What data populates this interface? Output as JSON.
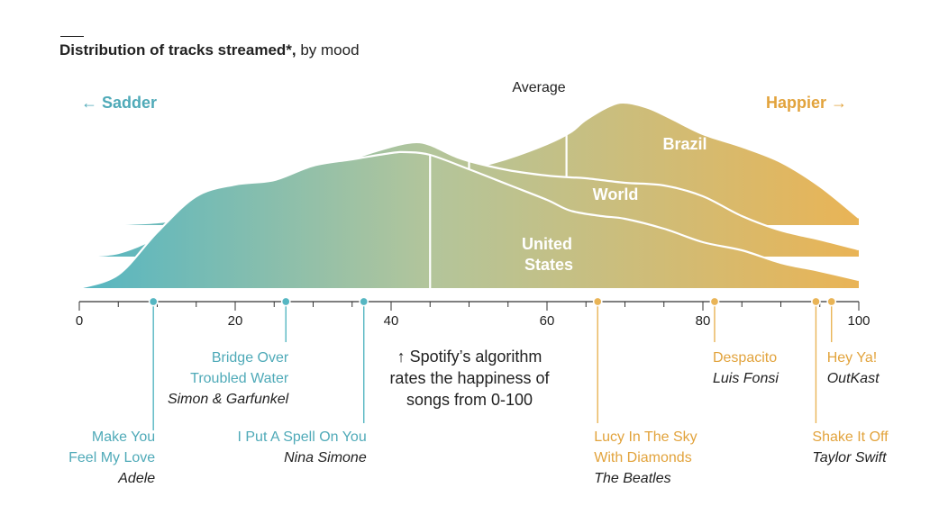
{
  "subtitle": {
    "bold": "Distribution of tracks streamed*,",
    "rest": " by mood"
  },
  "labels": {
    "sadder": "← Sadder",
    "happier": "Happier →",
    "average": "Average",
    "note": [
      "↑ Spotify’s algorithm",
      "rates the happiness of",
      "songs from 0-100"
    ]
  },
  "colors": {
    "sad": "#55B6C2",
    "mid": "#B3C59B",
    "happy": "#E9B456",
    "teal_text": "#4FAAB8",
    "orange_text": "#E2A33C"
  },
  "chart_data": {
    "type": "area",
    "x_axis": {
      "range": [
        0,
        100
      ],
      "ticks": [
        0,
        20,
        40,
        60,
        80,
        100
      ]
    },
    "series": [
      {
        "name": "Brazil",
        "average": 62.5,
        "x": [
          2,
          10,
          16,
          20,
          25,
          30,
          35,
          40,
          43,
          45,
          48,
          50,
          55,
          60,
          63,
          65,
          68,
          70,
          73,
          76,
          80,
          85,
          90,
          95,
          100
        ],
        "density": [
          0,
          3,
          10,
          14,
          18,
          25,
          37,
          55,
          62,
          61,
          58,
          62,
          74,
          90,
          103,
          117,
          132,
          136,
          130,
          118,
          101,
          87,
          70,
          43,
          8
        ]
      },
      {
        "name": "World",
        "average": 50,
        "x": [
          0,
          5,
          10,
          15,
          20,
          25,
          30,
          35,
          40,
          43,
          45,
          48,
          50,
          55,
          60,
          63,
          65,
          70,
          75,
          80,
          85,
          90,
          95,
          100
        ],
        "density": [
          0,
          4,
          21,
          43,
          62,
          73,
          86,
          108,
          122,
          127,
          124,
          112,
          106,
          96,
          90,
          88,
          87,
          82,
          79,
          67,
          45,
          29,
          19,
          8
        ]
      },
      {
        "name": "United States",
        "average": 45,
        "x": [
          0,
          5,
          10,
          15,
          20,
          25,
          30,
          35,
          40,
          42,
          45,
          50,
          55,
          60,
          63,
          67,
          70,
          75,
          80,
          85,
          90,
          95,
          100
        ],
        "density": [
          0,
          15,
          62,
          102,
          115,
          120,
          136,
          143,
          150,
          151,
          148,
          132,
          115,
          98,
          86,
          80,
          77,
          66,
          51,
          42,
          28,
          19,
          9
        ]
      }
    ],
    "songs": [
      {
        "title": [
          "Make You",
          "Feel My Love"
        ],
        "artist": "Adele",
        "score": 9.5
      },
      {
        "title": [
          "Bridge Over",
          "Troubled Water"
        ],
        "artist": "Simon & Garfunkel",
        "score": 26.5
      },
      {
        "title": [
          "I Put A Spell On You"
        ],
        "artist": "Nina Simone",
        "score": 36.5
      },
      {
        "title": [
          "Lucy In The Sky",
          "With Diamonds"
        ],
        "artist": "The Beatles",
        "score": 66.5
      },
      {
        "title": [
          "Despacito"
        ],
        "artist": "Luis Fonsi",
        "score": 81.5
      },
      {
        "title": [
          "Shake It Off"
        ],
        "artist": "Taylor Swift",
        "score": 94.5
      },
      {
        "title": [
          "Hey Ya!"
        ],
        "artist": "OutKast",
        "score": 96.5
      }
    ]
  }
}
